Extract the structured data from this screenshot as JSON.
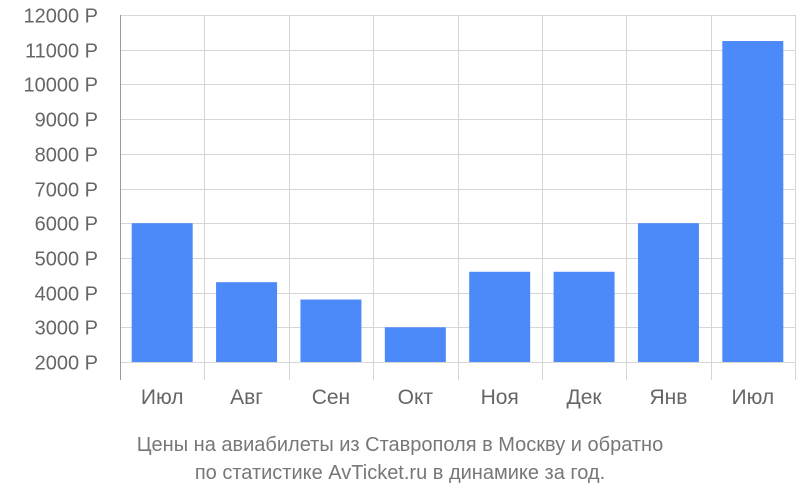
{
  "chart_data": {
    "type": "bar",
    "categories": [
      "Июл",
      "Авг",
      "Сен",
      "Окт",
      "Ноя",
      "Дек",
      "Янв",
      "Июл"
    ],
    "values": [
      6000,
      4300,
      3800,
      3000,
      4600,
      4600,
      6000,
      11250
    ],
    "ylim": [
      2000,
      12000
    ],
    "yticks": [
      2000,
      3000,
      4000,
      5000,
      6000,
      7000,
      8000,
      9000,
      10000,
      11000,
      12000
    ],
    "ytick_suffix": " Р",
    "bar_color": "#4d8af9",
    "grid": true
  },
  "caption": {
    "line1": "Цены на авиабилеты из Ставрополя в Москву и обратно",
    "line2": "по статистике AvTicket.ru в динамике за год."
  },
  "colors": {
    "grid": "#d6d6d6",
    "axis": "#999999",
    "text": "#666666"
  }
}
